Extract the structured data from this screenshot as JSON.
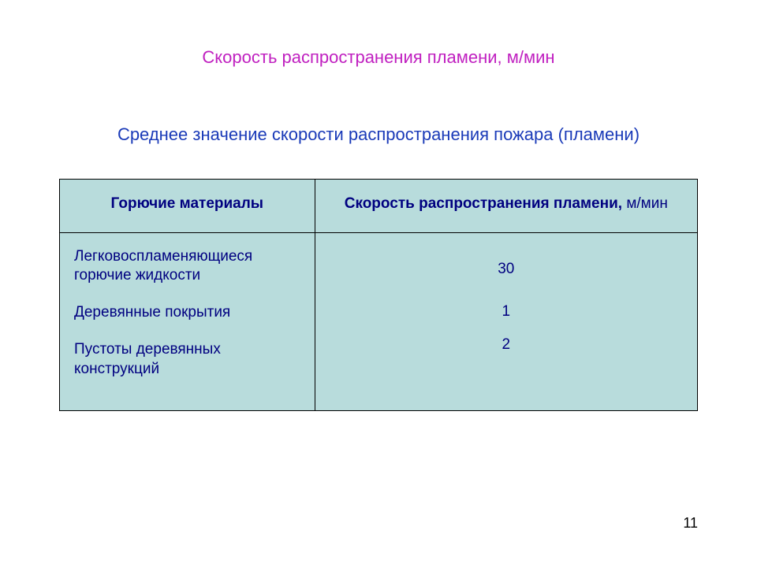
{
  "mainTitle": "Скорость распространения пламени, м/мин",
  "subTitle": "Среднее значение скорости распространения пожара (пламени)",
  "table": {
    "headers": {
      "col1": "Горючие материалы",
      "col2": "Скорость распространения пламени,",
      "col2_unit": " м/мин"
    },
    "materials": [
      "Легковоспламеняющиеся горючие жидкости",
      "Деревянные покрытия",
      "Пустоты деревянных конструкций"
    ],
    "values": [
      "30",
      "1",
      "2"
    ]
  },
  "pageNumber": "11",
  "colors": {
    "titleColor": "#c020c0",
    "textColor": "#000080",
    "subTitleColor": "#1a3ab8",
    "tableBackground": "#b8dcdc",
    "borderColor": "#000000",
    "pageBackground": "#ffffff"
  }
}
